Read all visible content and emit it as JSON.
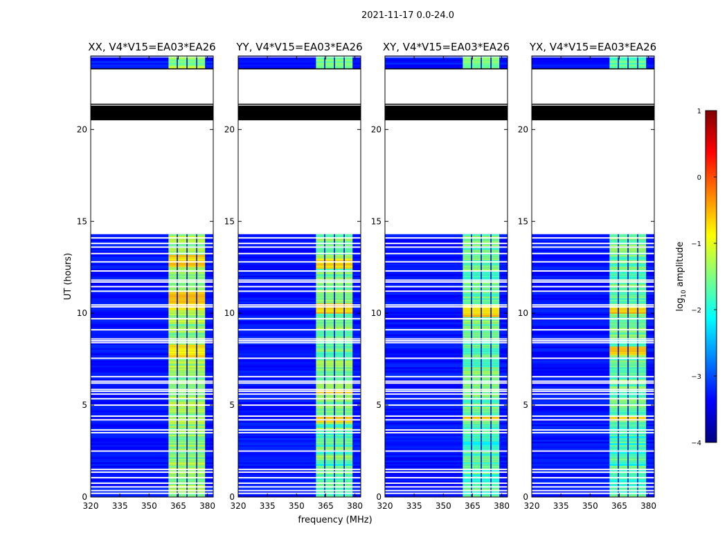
{
  "figure": {
    "suptitle": "2021-11-17 0.0-24.0",
    "ylabel": "UT (hours)",
    "xlabel": "frequency (MHz)"
  },
  "colorbar": {
    "label_main": "log",
    "label_sub": "10",
    "label_tail": " amplitude",
    "range": [
      -4,
      1
    ],
    "ticks": [
      1,
      0,
      -1,
      -2,
      -3,
      -4
    ],
    "tick_labels": [
      "1",
      "0",
      "−1",
      "−2",
      "−3",
      "−4"
    ],
    "colors": [
      "#00007f",
      "#0000ff",
      "#0080ff",
      "#00ffff",
      "#80ff80",
      "#ffff00",
      "#ff8000",
      "#ff0000",
      "#7f0000"
    ]
  },
  "chart_data": {
    "type": "heatmap",
    "xlim": [
      320,
      383
    ],
    "ylim": [
      0,
      24
    ],
    "x_ticks": [
      320,
      335,
      350,
      365,
      380
    ],
    "y_ticks": [
      0,
      5,
      10,
      15,
      20
    ],
    "signal_band_mhz": [
      360,
      379
    ],
    "channel_dividers_mhz": [
      364.5,
      369.5,
      374.5
    ],
    "data_segments_hours": [
      [
        0,
        14.3
      ],
      [
        23.3,
        24
      ]
    ],
    "flagged_black_hours": [
      [
        20.5,
        21.3
      ]
    ],
    "empty_hours": [
      [
        14.3,
        20.5
      ],
      [
        21.3,
        23.3
      ]
    ],
    "white_gap_hours": [
      0.2,
      0.35,
      0.55,
      0.75,
      1.05,
      1.35,
      1.5,
      2.5,
      3.5,
      3.65,
      4.2,
      4.4,
      5.0,
      5.35,
      5.6,
      5.75,
      5.85,
      6.2,
      6.3,
      6.55,
      7.55,
      8.4,
      8.5,
      8.6,
      9.1,
      9.7,
      10.35,
      10.45,
      11.2,
      11.45,
      11.7,
      11.8,
      12.3,
      12.8,
      13.25,
      13.6,
      13.8,
      14.1
    ],
    "panels": [
      {
        "title": "XX, V4*V15=EA03*EA26",
        "band_level": -1.4,
        "hot_hours": [
          [
            7.6,
            8.3
          ],
          [
            10.2,
            11.2
          ],
          [
            12.6,
            13.2
          ]
        ]
      },
      {
        "title": "YY, V4*V15=EA03*EA26",
        "band_level": -1.5,
        "hot_hours": [
          [
            10.0,
            10.6
          ],
          [
            12.5,
            13.0
          ],
          [
            5.6,
            5.9
          ],
          [
            4.1,
            4.5
          ]
        ]
      },
      {
        "title": "XY, V4*V15=EA03*EA26",
        "band_level": -1.6,
        "hot_hours": [
          [
            9.8,
            10.5
          ],
          [
            4.2,
            4.5
          ]
        ]
      },
      {
        "title": "YX, V4*V15=EA03*EA26",
        "band_level": -1.6,
        "hot_hours": [
          [
            7.8,
            8.2
          ],
          [
            10.0,
            10.4
          ],
          [
            4.2,
            4.5
          ]
        ]
      }
    ]
  }
}
